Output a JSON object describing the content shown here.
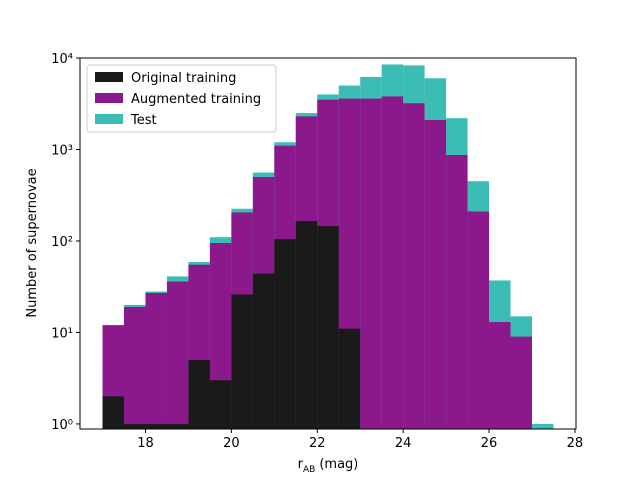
{
  "chart_data": {
    "type": "histogram",
    "x_label": "r",
    "x_label_subscript": "AB",
    "x_label_unit": "(mag)",
    "y_label": "Number of supernovae",
    "bins": [
      17,
      17.5,
      18,
      18.5,
      19,
      19.5,
      20,
      20.5,
      21,
      21.5,
      22,
      22.5,
      23,
      23.5,
      24,
      24.5,
      25,
      25.5,
      26,
      26.5,
      27,
      27.5
    ],
    "series": [
      {
        "name": "Original training",
        "color": "#1a1a1a",
        "values": [
          2,
          1,
          1,
          1,
          5,
          3,
          26,
          44,
          105,
          165,
          145,
          11,
          0,
          0,
          0,
          0,
          0,
          0,
          0,
          0,
          0
        ]
      },
      {
        "name": "Augmented training",
        "color": "#8b198b",
        "values": [
          12,
          19,
          27,
          36,
          55,
          95,
          205,
          500,
          1100,
          2300,
          3500,
          3600,
          3600,
          3800,
          3200,
          2100,
          870,
          210,
          13,
          9,
          0
        ]
      },
      {
        "name": "Test",
        "color": "#3bbcb5",
        "values": [
          12,
          20,
          28,
          41,
          59,
          110,
          225,
          560,
          1200,
          2500,
          4000,
          5000,
          6200,
          8500,
          8300,
          6000,
          2200,
          450,
          37,
          15,
          1
        ]
      }
    ],
    "xlim": [
      16.475,
      28.025
    ],
    "xticks": [
      18,
      20,
      22,
      24,
      26,
      28
    ],
    "ylim": [
      0.88,
      10000
    ],
    "yticks": [
      {
        "value": 1,
        "label": "10⁰"
      },
      {
        "value": 10,
        "label": "10¹"
      },
      {
        "value": 100,
        "label": "10²"
      },
      {
        "value": 1000,
        "label": "10³"
      },
      {
        "value": 10000,
        "label": "10⁴"
      }
    ],
    "log_y": true,
    "legend": "upper left"
  }
}
